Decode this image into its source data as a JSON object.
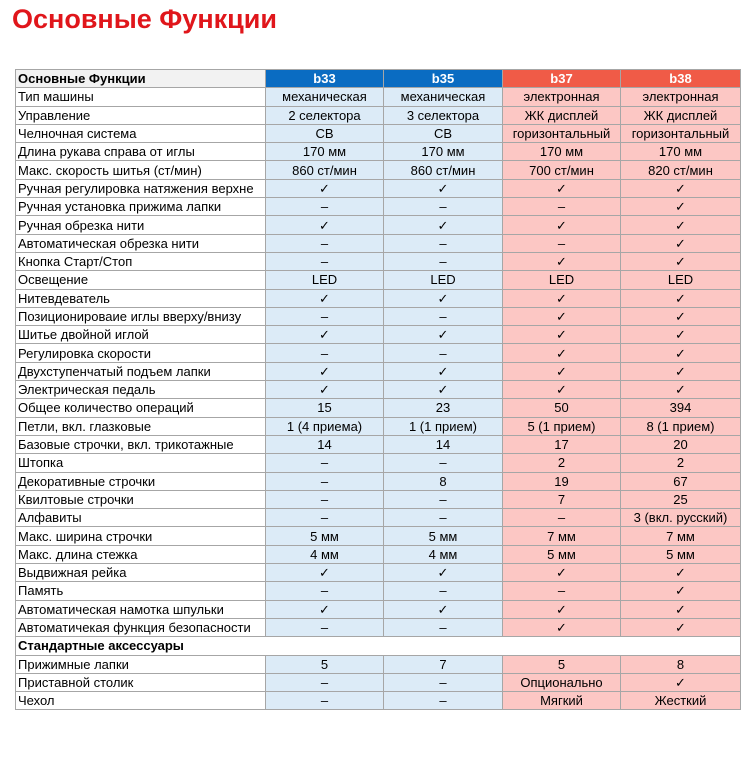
{
  "title": "Основные Функции",
  "table": {
    "header": [
      "Основные Функции",
      "b33",
      "b35",
      "b37",
      "b38"
    ],
    "rows": [
      [
        "Тип машины",
        "механическая",
        "механическая",
        "электронная",
        "электронная"
      ],
      [
        "Управление",
        "2 селектора",
        "3 селектора",
        "ЖК дисплей",
        "ЖК дисплей"
      ],
      [
        "Челночная система",
        "CB",
        "CB",
        "горизонтальный",
        "горизонтальный"
      ],
      [
        "Длина рукава справа от иглы",
        "170 мм",
        "170 мм",
        "170 мм",
        "170 мм"
      ],
      [
        "Макс. скорость шитья (ст/мин)",
        "860 ст/мин",
        "860 ст/мин",
        "700 ст/мин",
        "820 ст/мин"
      ],
      [
        "Ручная регулировка натяжения верхне",
        "✓",
        "✓",
        "✓",
        "✓"
      ],
      [
        "Ручная установка прижима лапки",
        "–",
        "–",
        "–",
        "✓"
      ],
      [
        "Ручная обрезка нити",
        "✓",
        "✓",
        "✓",
        "✓"
      ],
      [
        "Автоматическая обрезка нити",
        "–",
        "–",
        "–",
        "✓"
      ],
      [
        "Кнопка Старт/Стоп",
        "–",
        "–",
        "✓",
        "✓"
      ],
      [
        "Освещение",
        "LED",
        "LED",
        "LED",
        "LED"
      ],
      [
        "Нитевдеватель",
        "✓",
        "✓",
        "✓",
        "✓"
      ],
      [
        "Позиционироваие иглы вверху/внизу",
        "–",
        "–",
        "✓",
        "✓"
      ],
      [
        "Шитье двойной иглой",
        "✓",
        "✓",
        "✓",
        "✓"
      ],
      [
        "Регулировка скорости",
        "–",
        "–",
        "✓",
        "✓"
      ],
      [
        "Двухступенчатый подъем лапки",
        "✓",
        "✓",
        "✓",
        "✓"
      ],
      [
        "Электрическая педаль",
        "✓",
        "✓",
        "✓",
        "✓"
      ],
      [
        "Общее количество операций",
        "15",
        "23",
        "50",
        "394"
      ],
      [
        "Петли, вкл. глазковые",
        "1 (4 приема)",
        "1 (1 прием)",
        "5 (1 прием)",
        "8 (1 прием)"
      ],
      [
        "Базовые строчки, вкл. трикотажные",
        "14",
        "14",
        "17",
        "20"
      ],
      [
        "Штопка",
        "–",
        "–",
        "2",
        "2"
      ],
      [
        "Декоративные строчки",
        "–",
        "8",
        "19",
        "67"
      ],
      [
        "Квилтовые строчки",
        "–",
        "–",
        "7",
        "25"
      ],
      [
        "Алфавиты",
        "–",
        "–",
        "–",
        "3 (вкл. русский)"
      ],
      [
        "Макс. ширина строчки",
        "5 мм",
        "5 мм",
        "7 мм",
        "7 мм"
      ],
      [
        "Макс. длина стежка",
        "4 мм",
        "4 мм",
        "5 мм",
        "5 мм"
      ],
      [
        "Выдвижная рейка",
        "✓",
        "✓",
        "✓",
        "✓"
      ],
      [
        "Память",
        "–",
        "–",
        "–",
        "✓"
      ],
      [
        "Автоматическая намотка шпульки",
        "✓",
        "✓",
        "✓",
        "✓"
      ],
      [
        "Автоматичекая функция безопасности",
        "–",
        "–",
        "✓",
        "✓"
      ]
    ],
    "section": "Стандартные аксессуары",
    "accessory_rows": [
      [
        "Прижимные лапки",
        "5",
        "7",
        "5",
        "8"
      ],
      [
        "Приставной столик",
        "–",
        "–",
        "Опционально",
        "✓"
      ],
      [
        "Чехол",
        "–",
        "–",
        "Мягкий",
        "Жесткий"
      ]
    ]
  }
}
